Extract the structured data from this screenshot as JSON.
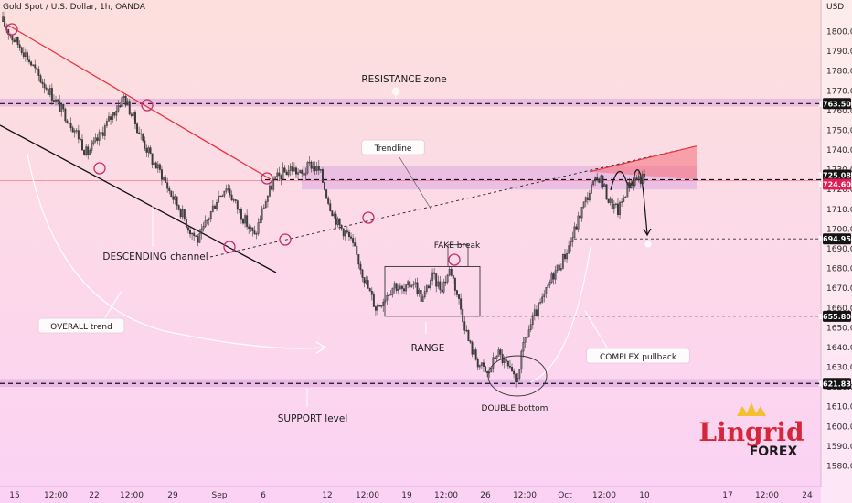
{
  "chart_data": {
    "type": "candlestick",
    "title": "Gold Spot / U.S. Dollar, 1h, OANDA",
    "currency": "USD",
    "ylim": [
      1572,
      1822
    ],
    "y_ticks": [
      1580,
      1590,
      1600,
      1610,
      1620,
      1630,
      1640,
      1650,
      1660,
      1670,
      1680,
      1690,
      1700,
      1710,
      1720,
      1730,
      1740,
      1750,
      1760,
      1770,
      1780,
      1790,
      1800
    ],
    "x_ticks": [
      "15",
      "12:00",
      "22",
      "12:00",
      "29",
      "Sep",
      "6",
      "12",
      "12:00",
      "19",
      "12:00",
      "26",
      "12:00",
      "Oct",
      "12:00",
      "10",
      "17",
      "12:00",
      "24"
    ],
    "price_markers": [
      {
        "value": "1763.501",
        "kind": "level"
      },
      {
        "value": "1725.089",
        "kind": "level"
      },
      {
        "value": "1724.600",
        "kind": "last_price"
      },
      {
        "value": "1694.950",
        "kind": "level"
      },
      {
        "value": "1655.800",
        "kind": "level"
      },
      {
        "value": "1621.833",
        "kind": "level"
      }
    ],
    "zones": [
      {
        "name": "RESISTANCE zone",
        "from": 1762,
        "to": 1766
      },
      {
        "name": "SUPPORT level",
        "from": 1620,
        "to": 1624
      }
    ],
    "price_path": [
      1805,
      1797,
      1792,
      1784,
      1776,
      1770,
      1762,
      1756,
      1748,
      1738,
      1744,
      1752,
      1760,
      1767,
      1756,
      1745,
      1735,
      1728,
      1718,
      1710,
      1700,
      1694,
      1705,
      1716,
      1722,
      1712,
      1704,
      1696,
      1712,
      1724,
      1728,
      1731,
      1727,
      1733,
      1729,
      1713,
      1702,
      1697,
      1686,
      1672,
      1660,
      1666,
      1672,
      1668,
      1674,
      1664,
      1676,
      1670,
      1680,
      1662,
      1642,
      1632,
      1626,
      1638,
      1631,
      1622,
      1644,
      1656,
      1665,
      1677,
      1684,
      1695,
      1709,
      1720,
      1727,
      1714,
      1709,
      1722,
      1726,
      1725
    ]
  },
  "annotations": {
    "resistance": "RESISTANCE zone",
    "trendline": "Trendline",
    "descending": "DESCENDING channel",
    "overall": "OVERALL trend",
    "fake_break": "FAKE break",
    "range": "RANGE",
    "complex": "COMPLEX pullback",
    "double_bottom": "DOUBLE bottom",
    "support": "SUPPORT level"
  },
  "logo": {
    "main": "Lingrid",
    "sub": "FOREX"
  },
  "colors": {
    "bg_top": "#fddcdc",
    "bg_bottom": "#fbd3f2",
    "candle": "#3a3a3a",
    "red_line": "#e8343f",
    "black_line": "#111111",
    "zone_fill": "#d9a3df",
    "triangle_fill": "#f46f7a",
    "circle": "#c12f6a",
    "last_price_bg": "#e01e55"
  }
}
